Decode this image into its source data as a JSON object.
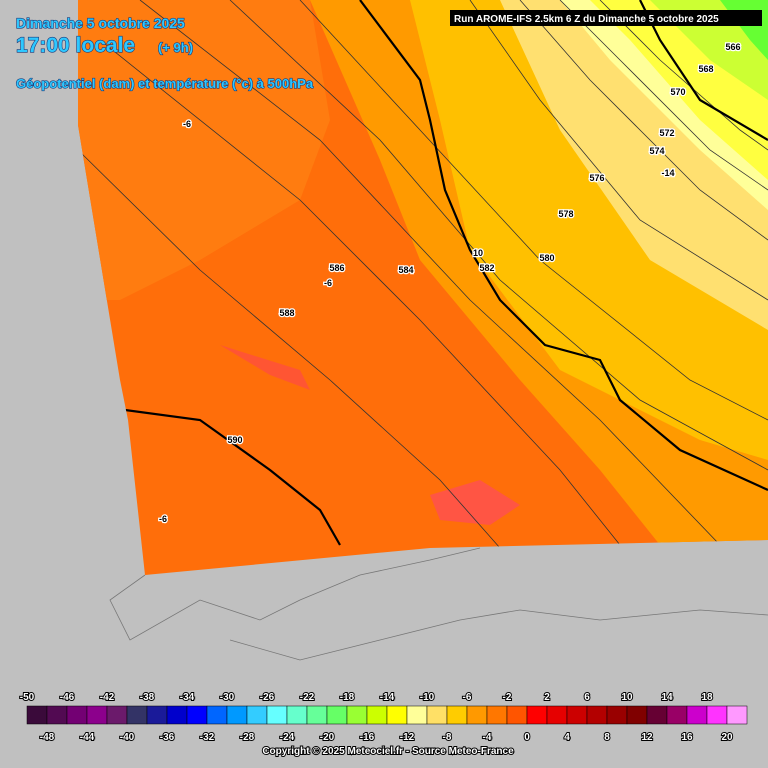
{
  "header": {
    "date": "Dimanche 5 octobre 2025",
    "time": "17:00 locale",
    "lead": "(+ 9h)",
    "field": "Géopotentiel (dam) et température (°c) à 500hPa"
  },
  "run": "Run AROME-IFS 2.5km 6 Z du Dimanche 5 octobre 2025",
  "contour_labels": [
    -6,
    -6,
    -6,
    586,
    584,
    588,
    590,
    566,
    568,
    570,
    572,
    574,
    -14,
    576,
    578,
    580,
    582,
    10
  ],
  "colorbar": {
    "colors": [
      "#3a0a3a",
      "#520a52",
      "#730073",
      "#8c008c",
      "#6b1a6b",
      "#333366",
      "#1a1a99",
      "#0000cc",
      "#0000ff",
      "#0066ff",
      "#0099ff",
      "#33ccff",
      "#66ffff",
      "#66ffcc",
      "#66ff99",
      "#66ff66",
      "#99ff33",
      "#ccff00",
      "#ffff00",
      "#ffff99",
      "#ffe066",
      "#ffcc00",
      "#ff9900",
      "#ff7700",
      "#ff5500",
      "#ff0000",
      "#e60000",
      "#cc0000",
      "#b30000",
      "#990000",
      "#800000",
      "#660033",
      "#990066",
      "#cc00cc",
      "#ff33ff",
      "#ff99ff"
    ],
    "labels_top": [
      -50,
      -46,
      -42,
      -38,
      -34,
      -30,
      -26,
      -22,
      -18,
      -14,
      -10,
      -6,
      -2,
      2,
      6,
      10,
      14,
      18
    ],
    "labels_bottom": [
      -48,
      -44,
      -40,
      -36,
      -32,
      -28,
      -24,
      -20,
      -16,
      -12,
      -8,
      -4,
      0,
      4,
      8,
      12,
      16,
      20
    ]
  },
  "copyright": "Copyright © 2025 Meteociel.fr - Source Meteo-France"
}
